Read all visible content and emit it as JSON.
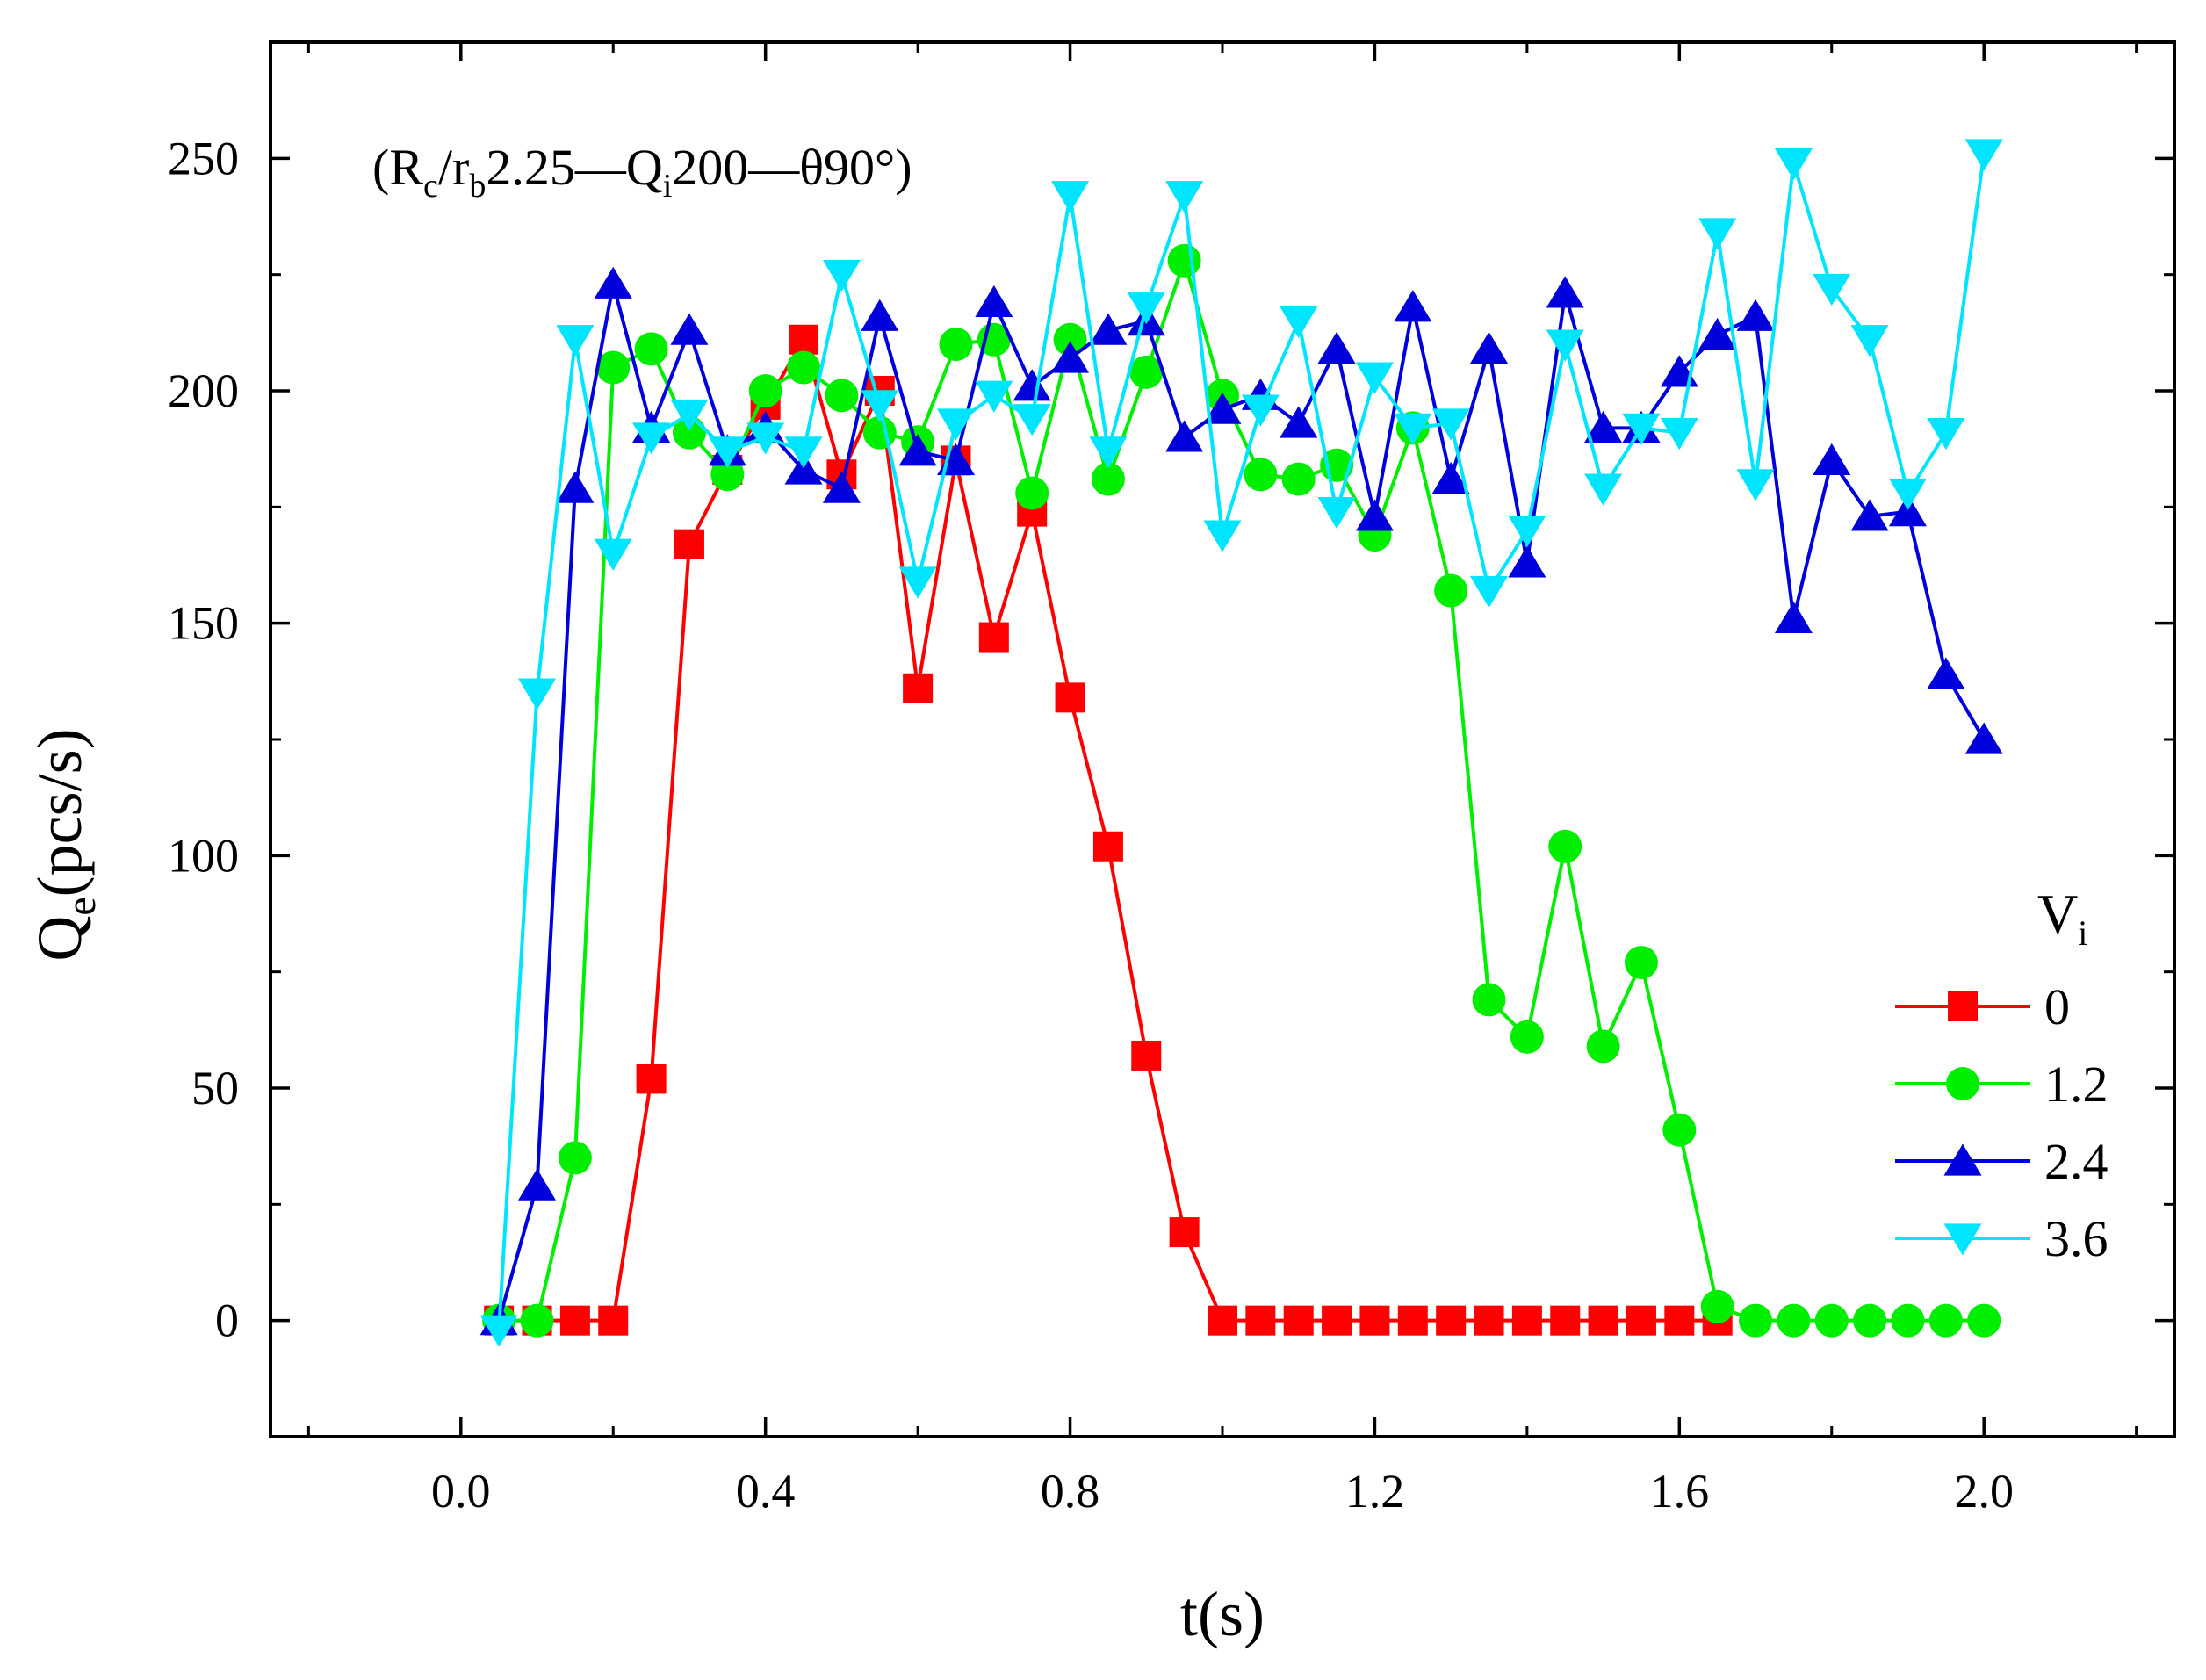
{
  "chart_data": {
    "type": "line",
    "title": "",
    "annotation": {
      "parts": [
        {
          "t": "(R",
          "sub": false
        },
        {
          "t": "c",
          "sub": true
        },
        {
          "t": "/r",
          "sub": false
        },
        {
          "t": "b",
          "sub": true
        },
        {
          "t": "2.25—Q",
          "sub": false
        },
        {
          "t": "i",
          "sub": true
        },
        {
          "t": "200—θ90°)",
          "sub": false
        }
      ]
    },
    "xlabel": "t(s)",
    "ylabel_main": "Q",
    "ylabel_sub": "e",
    "ylabel_unit": "(pcs/s)",
    "xlim": [
      -0.25,
      2.25
    ],
    "ylim": [
      -25,
      275
    ],
    "xticks": [
      0.0,
      0.4,
      0.8,
      1.2,
      1.6,
      2.0
    ],
    "xtick_labels": [
      "0.0",
      "0.4",
      "0.8",
      "1.2",
      "1.6",
      "2.0"
    ],
    "yticks": [
      0,
      50,
      100,
      150,
      200,
      250
    ],
    "ytick_labels": [
      "0",
      "50",
      "100",
      "150",
      "200",
      "250"
    ],
    "legend": {
      "title_main": "V",
      "title_sub": "i",
      "placement": "bottom-right"
    },
    "series": [
      {
        "name": "0",
        "color": "#ff0000",
        "marker": "square",
        "points": [
          [
            0.05,
            0
          ],
          [
            0.1,
            0
          ],
          [
            0.15,
            0
          ],
          [
            0.2,
            0
          ],
          [
            0.25,
            52
          ],
          [
            0.3,
            167
          ],
          [
            0.35,
            183
          ],
          [
            0.4,
            197
          ],
          [
            0.45,
            211
          ],
          [
            0.5,
            182
          ],
          [
            0.55,
            200
          ],
          [
            0.6,
            136
          ],
          [
            0.65,
            185
          ],
          [
            0.7,
            147
          ],
          [
            0.75,
            174
          ],
          [
            0.8,
            134
          ],
          [
            0.85,
            102
          ],
          [
            0.9,
            57
          ],
          [
            0.95,
            19
          ],
          [
            1.0,
            0
          ],
          [
            1.05,
            0
          ],
          [
            1.1,
            0
          ],
          [
            1.15,
            0
          ],
          [
            1.2,
            0
          ],
          [
            1.25,
            0
          ],
          [
            1.3,
            0
          ],
          [
            1.35,
            0
          ],
          [
            1.4,
            0
          ],
          [
            1.45,
            0
          ],
          [
            1.5,
            0
          ],
          [
            1.55,
            0
          ],
          [
            1.6,
            0
          ],
          [
            1.65,
            0
          ]
        ]
      },
      {
        "name": "1.2",
        "color": "#00ee00",
        "marker": "circle",
        "points": [
          [
            0.05,
            0
          ],
          [
            0.1,
            0
          ],
          [
            0.15,
            35
          ],
          [
            0.2,
            205
          ],
          [
            0.25,
            209
          ],
          [
            0.3,
            191
          ],
          [
            0.35,
            182
          ],
          [
            0.4,
            200
          ],
          [
            0.45,
            205
          ],
          [
            0.5,
            199
          ],
          [
            0.55,
            191
          ],
          [
            0.6,
            189
          ],
          [
            0.65,
            210
          ],
          [
            0.7,
            211
          ],
          [
            0.75,
            178
          ],
          [
            0.8,
            211
          ],
          [
            0.85,
            181
          ],
          [
            0.9,
            204
          ],
          [
            0.95,
            228
          ],
          [
            1.0,
            199
          ],
          [
            1.05,
            182
          ],
          [
            1.1,
            181
          ],
          [
            1.15,
            184
          ],
          [
            1.2,
            169
          ],
          [
            1.25,
            192
          ],
          [
            1.3,
            157
          ],
          [
            1.35,
            69
          ],
          [
            1.4,
            61
          ],
          [
            1.45,
            102
          ],
          [
            1.5,
            59
          ],
          [
            1.55,
            77
          ],
          [
            1.6,
            41
          ],
          [
            1.65,
            3
          ],
          [
            1.7,
            0
          ],
          [
            1.75,
            0
          ],
          [
            1.8,
            0
          ],
          [
            1.85,
            0
          ],
          [
            1.9,
            0
          ],
          [
            1.95,
            0
          ],
          [
            2.0,
            0
          ]
        ]
      },
      {
        "name": "2.4",
        "color": "#0000dd",
        "marker": "triangle-up",
        "points": [
          [
            0.05,
            0
          ],
          [
            0.1,
            29
          ],
          [
            0.15,
            179
          ],
          [
            0.2,
            223
          ],
          [
            0.25,
            192
          ],
          [
            0.3,
            213
          ],
          [
            0.35,
            187
          ],
          [
            0.4,
            192
          ],
          [
            0.45,
            183
          ],
          [
            0.5,
            179
          ],
          [
            0.55,
            216
          ],
          [
            0.6,
            187
          ],
          [
            0.65,
            185
          ],
          [
            0.7,
            219
          ],
          [
            0.75,
            201
          ],
          [
            0.8,
            207
          ],
          [
            0.85,
            213
          ],
          [
            0.9,
            215
          ],
          [
            0.95,
            190
          ],
          [
            1.0,
            196
          ],
          [
            1.05,
            199
          ],
          [
            1.1,
            193
          ],
          [
            1.15,
            209
          ],
          [
            1.2,
            173
          ],
          [
            1.25,
            218
          ],
          [
            1.3,
            181
          ],
          [
            1.35,
            209
          ],
          [
            1.4,
            163
          ],
          [
            1.45,
            221
          ],
          [
            1.5,
            192
          ],
          [
            1.55,
            192
          ],
          [
            1.6,
            204
          ],
          [
            1.65,
            212
          ],
          [
            1.7,
            216
          ],
          [
            1.75,
            151
          ],
          [
            1.8,
            185
          ],
          [
            1.85,
            173
          ],
          [
            1.9,
            174
          ],
          [
            1.95,
            139
          ],
          [
            2.0,
            125
          ]
        ]
      },
      {
        "name": "3.6",
        "color": "#00e5ff",
        "marker": "triangle-down",
        "points": [
          [
            0.05,
            -2
          ],
          [
            0.1,
            135
          ],
          [
            0.15,
            211
          ],
          [
            0.2,
            165
          ],
          [
            0.25,
            190
          ],
          [
            0.3,
            195
          ],
          [
            0.35,
            187
          ],
          [
            0.4,
            190
          ],
          [
            0.45,
            187
          ],
          [
            0.5,
            225
          ],
          [
            0.55,
            197
          ],
          [
            0.6,
            159
          ],
          [
            0.65,
            193
          ],
          [
            0.7,
            199
          ],
          [
            0.75,
            194
          ],
          [
            0.8,
            242
          ],
          [
            0.85,
            187
          ],
          [
            0.9,
            218
          ],
          [
            0.95,
            242
          ],
          [
            1.0,
            169
          ],
          [
            1.05,
            196
          ],
          [
            1.1,
            215
          ],
          [
            1.15,
            174
          ],
          [
            1.2,
            203
          ],
          [
            1.25,
            192
          ],
          [
            1.3,
            193
          ],
          [
            1.35,
            157
          ],
          [
            1.4,
            170
          ],
          [
            1.45,
            210
          ],
          [
            1.5,
            179
          ],
          [
            1.55,
            192
          ],
          [
            1.6,
            191
          ],
          [
            1.65,
            234
          ],
          [
            1.7,
            180
          ],
          [
            1.75,
            249
          ],
          [
            1.8,
            222
          ],
          [
            1.85,
            211
          ],
          [
            1.9,
            178
          ],
          [
            1.95,
            191
          ],
          [
            2.0,
            251
          ]
        ]
      }
    ]
  }
}
